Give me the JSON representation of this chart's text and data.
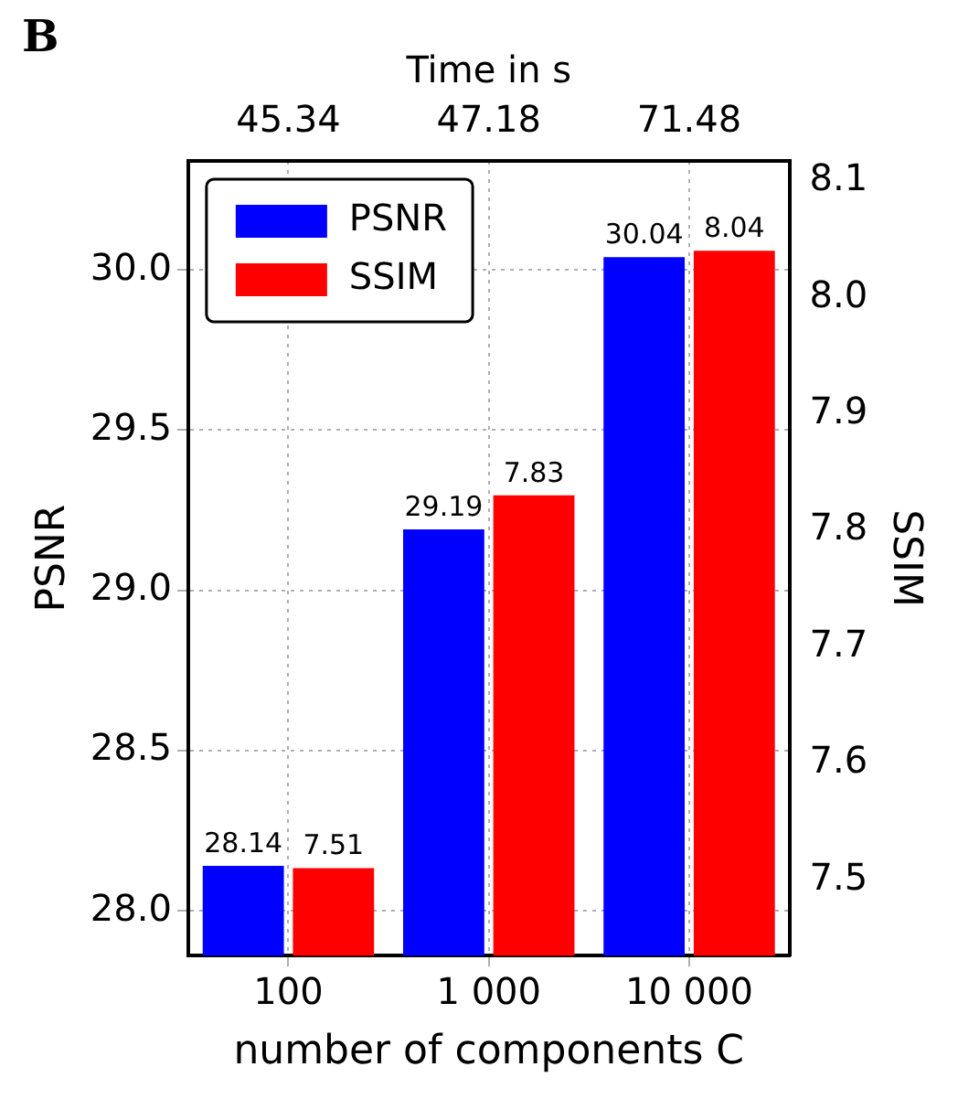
{
  "chart_data": {
    "type": "bar",
    "categories": [
      "100",
      "1 000",
      "10 000"
    ],
    "xlabel": "number of components C",
    "ylabel": "PSNR",
    "y2label": "SSIM",
    "x2label": "Time in s",
    "series": [
      {
        "name": "PSNR",
        "color": "#0000ff",
        "values": [
          28.14,
          29.19,
          30.04
        ]
      },
      {
        "name": "SSIM",
        "color": "#ff0000",
        "values": [
          7.51,
          7.83,
          8.04
        ],
        "axis": "y2"
      }
    ],
    "ylim": [
      27.86,
      30.34
    ],
    "yticks": [
      {
        "value": 28,
        "label": "28.0"
      },
      28.5,
      {
        "value": 29,
        "label": "29.0"
      },
      29.5,
      {
        "value": 30,
        "label": "30.0"
      }
    ],
    "y2lim": [
      7.435,
      8.117
    ],
    "y2ticks": [
      7.5,
      7.6,
      7.7,
      7.8,
      7.9,
      {
        "value": 8,
        "label": "8.0"
      },
      8.1
    ],
    "data_labels": true,
    "grid": true,
    "legend": "top left",
    "annotations": [
      "B",
      "45.34",
      "47.18",
      "71.48"
    ]
  }
}
